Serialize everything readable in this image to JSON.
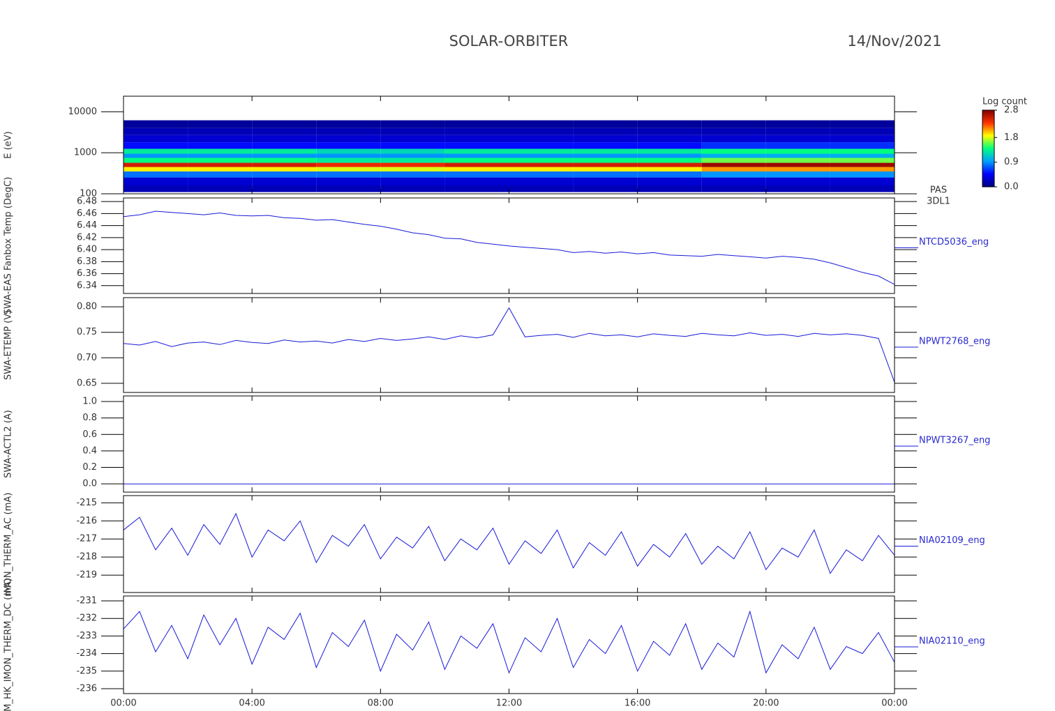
{
  "header": {
    "title": "SOLAR-ORBITER",
    "date": "14/Nov/2021"
  },
  "time_axis": {
    "xlim": [
      0,
      24
    ],
    "xticks": [
      {
        "value": 0,
        "label": "00:00"
      },
      {
        "value": 4,
        "label": "04:00"
      },
      {
        "value": 8,
        "label": "08:00"
      },
      {
        "value": 12,
        "label": "12:00"
      },
      {
        "value": 16,
        "label": "16:00"
      },
      {
        "value": 20,
        "label": "20:00"
      },
      {
        "value": 24,
        "label": "00:00"
      }
    ],
    "x": [
      0,
      0.5,
      1,
      1.5,
      2,
      2.5,
      3,
      3.5,
      4,
      4.5,
      5,
      5.5,
      6,
      6.5,
      7,
      7.5,
      8,
      8.5,
      9,
      9.5,
      10,
      10.5,
      11,
      11.5,
      12,
      12.5,
      13,
      13.5,
      14,
      14.5,
      15,
      15.5,
      16,
      16.5,
      17,
      17.5,
      18,
      18.5,
      19,
      19.5,
      20,
      20.5,
      21,
      21.5,
      22,
      22.5,
      23,
      23.5,
      24
    ]
  },
  "chart_data": [
    {
      "type": "heatmap",
      "ylabel": "E (eV)",
      "ylog": true,
      "ylim": [
        100,
        24000
      ],
      "yticks": [
        100,
        1000,
        10000
      ],
      "labels": [
        "PAS",
        "3DL1"
      ],
      "x_bins": [
        0,
        2,
        4,
        6,
        8,
        10,
        12,
        14,
        16,
        18,
        20,
        22,
        24
      ],
      "y_bins": [
        110,
        160,
        250,
        350,
        450,
        570,
        750,
        950,
        1250,
        1800,
        2700,
        4000,
        6200
      ],
      "z": [
        [
          0.2,
          0.2,
          0.2,
          0.2,
          0.2,
          0.2,
          0.2,
          0.2,
          0.2,
          0.2,
          0.2,
          0.2
        ],
        [
          0.3,
          0.3,
          0.3,
          0.3,
          0.3,
          0.3,
          0.3,
          0.3,
          0.3,
          0.3,
          0.3,
          0.3
        ],
        [
          0.8,
          0.8,
          0.8,
          0.8,
          0.8,
          0.8,
          0.8,
          0.8,
          0.8,
          0.9,
          0.9,
          0.9
        ],
        [
          1.9,
          1.9,
          1.9,
          1.8,
          1.8,
          1.9,
          1.9,
          1.9,
          1.9,
          2.1,
          2.1,
          2.1
        ],
        [
          2.5,
          2.5,
          2.5,
          2.4,
          2.4,
          2.5,
          2.5,
          2.5,
          2.5,
          2.7,
          2.7,
          2.7
        ],
        [
          1.4,
          1.4,
          1.4,
          1.3,
          1.3,
          1.4,
          1.4,
          1.4,
          1.4,
          1.6,
          1.6,
          1.6
        ],
        [
          0.9,
          0.9,
          0.9,
          0.9,
          0.9,
          0.9,
          0.9,
          0.9,
          0.9,
          1.0,
          1.0,
          1.0
        ],
        [
          1.3,
          1.3,
          1.3,
          1.2,
          1.2,
          1.3,
          1.3,
          1.3,
          1.3,
          1.4,
          1.4,
          1.4
        ],
        [
          0.5,
          0.5,
          0.5,
          0.5,
          0.5,
          0.5,
          0.5,
          0.5,
          0.5,
          0.6,
          0.6,
          0.6
        ],
        [
          0.3,
          0.3,
          0.3,
          0.3,
          0.3,
          0.3,
          0.3,
          0.3,
          0.3,
          0.3,
          0.3,
          0.3
        ],
        [
          0.2,
          0.2,
          0.2,
          0.2,
          0.2,
          0.2,
          0.2,
          0.2,
          0.2,
          0.2,
          0.2,
          0.2
        ],
        [
          0.1,
          0.1,
          0.1,
          0.1,
          0.1,
          0.1,
          0.1,
          0.1,
          0.1,
          0.1,
          0.1,
          0.1
        ]
      ],
      "colorbar_title": "Log count",
      "zlim": [
        0,
        2.8
      ],
      "zticks": [
        {
          "value": 0,
          "label": "0.0"
        },
        0.9,
        1.8,
        2.8
      ],
      "colormap": [
        "#000080",
        "#0000ff",
        "#00a0ff",
        "#00ff80",
        "#ffff00",
        "#ff3000",
        "#800000"
      ]
    },
    {
      "type": "line",
      "ylabel": "SWA-EAS Fanbox Temp (DegC)",
      "ylim": [
        6.327,
        6.486
      ],
      "yticks": [
        {
          "value": 6.48,
          "label": "6.48"
        },
        6.46,
        6.44,
        6.42,
        {
          "value": 6.4,
          "label": "6.40"
        },
        6.38,
        6.36,
        6.34
      ],
      "series": [
        {
          "name": "NTCD5036_eng",
          "color": "#1818d8",
          "values": [
            6.455,
            6.458,
            6.464,
            6.462,
            6.46,
            6.458,
            6.461,
            6.457,
            6.456,
            6.457,
            6.453,
            6.452,
            6.449,
            6.45,
            6.446,
            6.442,
            6.439,
            6.434,
            6.428,
            6.425,
            6.419,
            6.418,
            6.412,
            6.409,
            6.406,
            6.404,
            6.402,
            6.4,
            6.395,
            6.397,
            6.394,
            6.396,
            6.393,
            6.395,
            6.391,
            6.39,
            6.389,
            6.392,
            6.39,
            6.388,
            6.386,
            6.389,
            6.387,
            6.384,
            6.378,
            6.37,
            6.362,
            6.356,
            6.342
          ]
        }
      ]
    },
    {
      "type": "line",
      "ylabel": "SWA-ETEMP (V)",
      "ylim": [
        0.632,
        0.818
      ],
      "yticks": [
        {
          "value": 0.8,
          "label": "0.80"
        },
        0.75,
        {
          "value": 0.7,
          "label": "0.70"
        },
        0.65
      ],
      "series": [
        {
          "name": "NPWT2768_eng",
          "color": "#1818d8",
          "values": [
            0.728,
            0.725,
            0.732,
            0.722,
            0.729,
            0.731,
            0.726,
            0.734,
            0.73,
            0.728,
            0.735,
            0.731,
            0.733,
            0.729,
            0.736,
            0.732,
            0.738,
            0.734,
            0.737,
            0.741,
            0.736,
            0.743,
            0.739,
            0.745,
            0.798,
            0.741,
            0.744,
            0.746,
            0.74,
            0.748,
            0.743,
            0.745,
            0.741,
            0.747,
            0.744,
            0.742,
            0.748,
            0.745,
            0.743,
            0.749,
            0.744,
            0.746,
            0.742,
            0.748,
            0.745,
            0.747,
            0.744,
            0.738,
            0.652
          ]
        }
      ]
    },
    {
      "type": "line",
      "ylabel": "SWA-ACTL2 (A)",
      "ylim": [
        -0.1,
        1.068
      ],
      "yticks": [
        {
          "value": 1,
          "label": "1.0"
        },
        0.8,
        0.6,
        0.4,
        0.2,
        {
          "value": 0,
          "label": "0.0"
        }
      ],
      "series": [
        {
          "name": "NPWT3267_eng",
          "color": "#1818d8",
          "values": [
            0,
            0,
            0,
            0,
            0,
            0,
            0,
            0,
            0,
            0,
            0,
            0,
            0,
            0,
            0,
            0,
            0,
            0,
            0,
            0,
            0,
            0,
            0,
            0,
            0,
            0,
            0,
            0,
            0,
            0,
            0,
            0,
            0,
            0,
            0,
            0,
            0,
            0,
            0,
            0,
            0,
            0,
            0,
            0,
            0,
            0,
            0,
            0,
            0
          ]
        }
      ]
    },
    {
      "type": "line",
      "ylabel": "IMON_THERM_AC (mA)",
      "ylim": [
        -219.96,
        -214.6
      ],
      "yticks": [
        -215,
        -216,
        -217,
        -218,
        -219
      ],
      "series": [
        {
          "name": "NIA02109_eng",
          "color": "#1818d8",
          "values": [
            -216.5,
            -215.8,
            -217.6,
            -216.4,
            -217.9,
            -216.2,
            -217.3,
            -215.6,
            -218.0,
            -216.5,
            -217.1,
            -216.0,
            -218.3,
            -216.8,
            -217.4,
            -216.2,
            -218.1,
            -216.9,
            -217.5,
            -216.3,
            -218.2,
            -217.0,
            -217.6,
            -216.4,
            -218.4,
            -217.1,
            -217.8,
            -216.5,
            -218.6,
            -217.2,
            -217.9,
            -216.6,
            -218.5,
            -217.3,
            -218.0,
            -216.7,
            -218.4,
            -217.4,
            -218.1,
            -216.6,
            -218.7,
            -217.5,
            -218.0,
            -216.5,
            -218.9,
            -217.6,
            -218.2,
            -216.8,
            -217.9
          ]
        }
      ]
    },
    {
      "type": "line",
      "ylabel": "M_HK_IMON_THERM_DC (mA)",
      "ylim": [
        -236.28,
        -230.72
      ],
      "yticks": [
        -231,
        -232,
        -233,
        -234,
        -235,
        -236
      ],
      "series": [
        {
          "name": "NIA02110_eng",
          "color": "#1818d8",
          "values": [
            -232.6,
            -231.6,
            -233.9,
            -232.4,
            -234.3,
            -231.8,
            -233.5,
            -232.0,
            -234.6,
            -232.5,
            -233.2,
            -231.7,
            -234.8,
            -232.8,
            -233.6,
            -232.1,
            -235.0,
            -232.9,
            -233.8,
            -232.2,
            -234.9,
            -233.0,
            -233.7,
            -232.3,
            -235.1,
            -233.1,
            -233.9,
            -232.0,
            -234.8,
            -233.2,
            -234.0,
            -232.4,
            -235.0,
            -233.3,
            -234.1,
            -232.3,
            -234.9,
            -233.4,
            -234.2,
            -231.6,
            -235.1,
            -233.5,
            -234.3,
            -232.5,
            -234.9,
            -233.6,
            -234.0,
            -232.8,
            -234.5
          ]
        }
      ]
    }
  ]
}
